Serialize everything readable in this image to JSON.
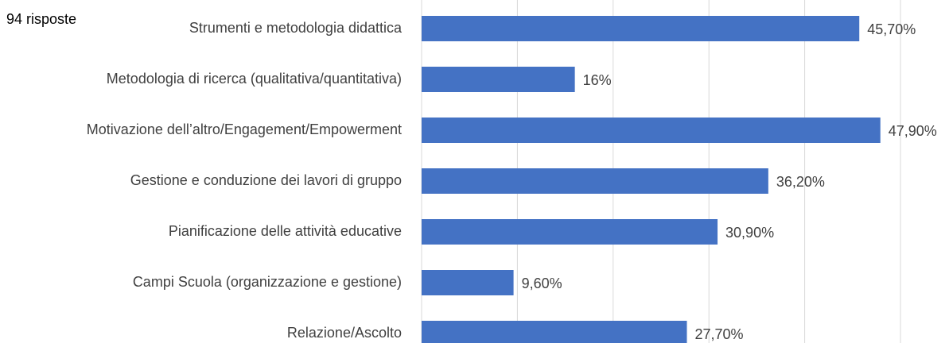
{
  "chart_data": {
    "type": "barh",
    "subtitle": "94 risposte",
    "categories": [
      "Strumenti e metodologia didattica",
      "Metodologia di ricerca (qualitativa/quantitativa)",
      "Motivazione dell’altro/Engagement/Empowerment",
      "Gestione e conduzione dei lavori di gruppo",
      "Pianificazione delle attività educative",
      "Campi Scuola (organizzazione e gestione)",
      "Relazione/Ascolto"
    ],
    "values": [
      45.7,
      16,
      47.9,
      36.2,
      30.9,
      9.6,
      27.7
    ],
    "value_labels": [
      "45,70%",
      "16%",
      "47,90%",
      "36,20%",
      "30,90%",
      "9,60%",
      "27,70%"
    ],
    "color": "#4472c4",
    "xlim": [
      0,
      50
    ],
    "xticks": [
      0,
      10,
      20,
      30,
      40,
      50
    ],
    "grid": true
  }
}
